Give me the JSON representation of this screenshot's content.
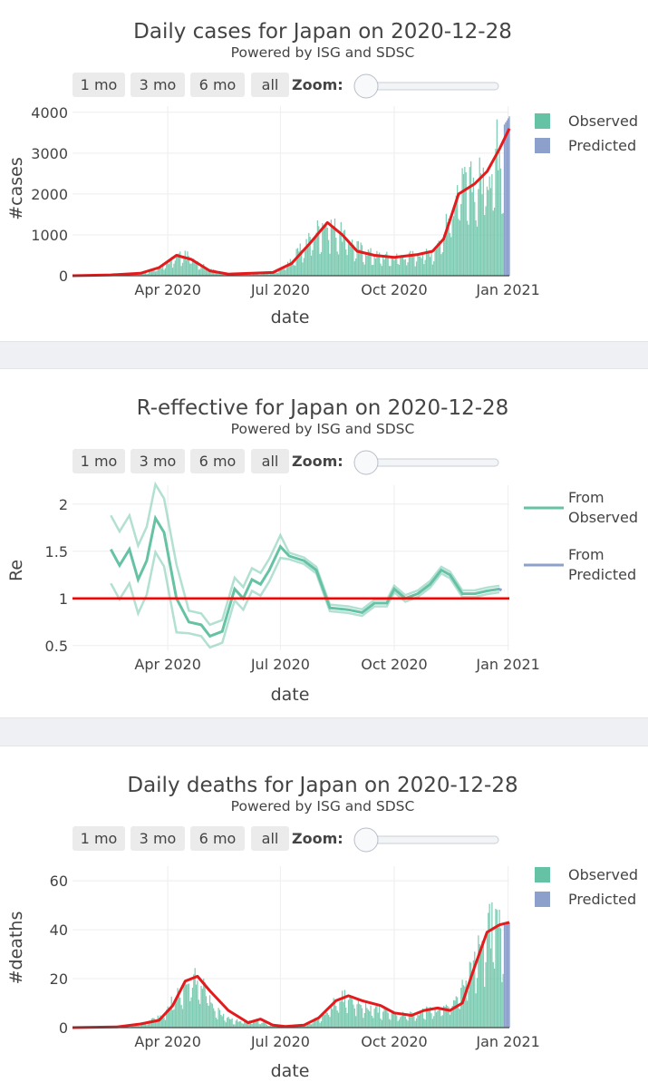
{
  "button_labels": [
    "1 mo",
    "3 mo",
    "6 mo",
    "all"
  ],
  "zoom_label": "Zoom:",
  "colors": {
    "observed": "#66c2a5",
    "predicted": "#8da0cb",
    "trend": "#e41a1c",
    "reference": "#ff0000"
  },
  "chart_data": [
    {
      "type": "bar",
      "title": "Daily cases for Japan on 2020-12-28",
      "subtitle": "Powered by ISG and SDSC",
      "xlabel": "date",
      "ylabel": "#cases",
      "x_ticks": [
        "Apr 2020",
        "Jul 2020",
        "Oct 2020",
        "Jan 2021"
      ],
      "x_range": [
        "2020-01-15",
        "2021-01-02"
      ],
      "y_ticks": [
        "0",
        "1000",
        "2000",
        "3000",
        "4000"
      ],
      "ylim": [
        0,
        4150
      ],
      "legend": [
        "Observed",
        "Predicted"
      ],
      "series": [
        {
          "name": "Observed",
          "kind": "bar",
          "knots": [
            [
              "2020-01-15",
              0
            ],
            [
              "2020-02-20",
              5
            ],
            [
              "2020-03-10",
              40
            ],
            [
              "2020-03-25",
              200
            ],
            [
              "2020-04-10",
              550
            ],
            [
              "2020-04-20",
              500
            ],
            [
              "2020-05-01",
              250
            ],
            [
              "2020-05-20",
              30
            ],
            [
              "2020-06-15",
              50
            ],
            [
              "2020-07-01",
              150
            ],
            [
              "2020-07-15",
              600
            ],
            [
              "2020-07-28",
              1100
            ],
            [
              "2020-08-05",
              1450
            ],
            [
              "2020-08-15",
              1250
            ],
            [
              "2020-08-30",
              800
            ],
            [
              "2020-09-15",
              550
            ],
            [
              "2020-10-01",
              500
            ],
            [
              "2020-10-15",
              550
            ],
            [
              "2020-11-01",
              650
            ],
            [
              "2020-11-10",
              1100
            ],
            [
              "2020-11-20",
              2200
            ],
            [
              "2020-12-01",
              2400
            ],
            [
              "2020-12-15",
              2700
            ],
            [
              "2020-12-24",
              3500
            ],
            [
              "2020-12-28",
              3650
            ]
          ]
        },
        {
          "name": "Predicted",
          "kind": "bar",
          "knots": [
            [
              "2020-12-29",
              3700
            ],
            [
              "2020-12-30",
              3750
            ],
            [
              "2020-12-31",
              3800
            ],
            [
              "2021-01-01",
              3850
            ],
            [
              "2021-01-02",
              3900
            ]
          ]
        },
        {
          "name": "Trend",
          "kind": "line",
          "knots": [
            [
              "2020-01-15",
              0
            ],
            [
              "2020-02-15",
              20
            ],
            [
              "2020-03-10",
              60
            ],
            [
              "2020-03-25",
              200
            ],
            [
              "2020-04-08",
              500
            ],
            [
              "2020-04-20",
              400
            ],
            [
              "2020-05-05",
              120
            ],
            [
              "2020-05-20",
              40
            ],
            [
              "2020-06-25",
              80
            ],
            [
              "2020-07-10",
              300
            ],
            [
              "2020-07-25",
              800
            ],
            [
              "2020-08-08",
              1300
            ],
            [
              "2020-08-20",
              1000
            ],
            [
              "2020-09-01",
              600
            ],
            [
              "2020-09-15",
              500
            ],
            [
              "2020-10-01",
              450
            ],
            [
              "2020-10-20",
              520
            ],
            [
              "2020-11-01",
              600
            ],
            [
              "2020-11-10",
              900
            ],
            [
              "2020-11-22",
              2000
            ],
            [
              "2020-12-05",
              2250
            ],
            [
              "2020-12-15",
              2550
            ],
            [
              "2020-12-25",
              3100
            ],
            [
              "2021-01-02",
              3600
            ]
          ]
        }
      ]
    },
    {
      "type": "line",
      "title": "R-effective for Japan on 2020-12-28",
      "subtitle": "Powered by ISG and SDSC",
      "xlabel": "date",
      "ylabel": "Re",
      "x_ticks": [
        "Apr 2020",
        "Jul 2020",
        "Oct 2020",
        "Jan 2021"
      ],
      "x_range": [
        "2020-01-15",
        "2021-01-02"
      ],
      "y_ticks": [
        "0.5",
        "1",
        "1.5",
        "2"
      ],
      "ylim": [
        0.45,
        2.2
      ],
      "reference_line": 1,
      "legend": [
        "From Observed",
        "From Predicted"
      ],
      "series": [
        {
          "name": "From Observed",
          "kind": "line",
          "points": [
            [
              "2020-02-15",
              1.52
            ],
            [
              "2020-02-22",
              1.35
            ],
            [
              "2020-03-01",
              1.52
            ],
            [
              "2020-03-08",
              1.2
            ],
            [
              "2020-03-15",
              1.4
            ],
            [
              "2020-03-22",
              1.85
            ],
            [
              "2020-03-29",
              1.7
            ],
            [
              "2020-04-08",
              1.0
            ],
            [
              "2020-04-18",
              0.75
            ],
            [
              "2020-04-28",
              0.72
            ],
            [
              "2020-05-05",
              0.6
            ],
            [
              "2020-05-15",
              0.65
            ],
            [
              "2020-05-25",
              1.1
            ],
            [
              "2020-06-01",
              1.0
            ],
            [
              "2020-06-08",
              1.2
            ],
            [
              "2020-06-15",
              1.15
            ],
            [
              "2020-06-22",
              1.3
            ],
            [
              "2020-07-01",
              1.55
            ],
            [
              "2020-07-08",
              1.45
            ],
            [
              "2020-07-20",
              1.4
            ],
            [
              "2020-07-30",
              1.3
            ],
            [
              "2020-08-10",
              0.9
            ],
            [
              "2020-08-25",
              0.88
            ],
            [
              "2020-09-05",
              0.85
            ],
            [
              "2020-09-15",
              0.95
            ],
            [
              "2020-09-25",
              0.95
            ],
            [
              "2020-10-01",
              1.1
            ],
            [
              "2020-10-10",
              1.0
            ],
            [
              "2020-10-20",
              1.05
            ],
            [
              "2020-10-30",
              1.15
            ],
            [
              "2020-11-08",
              1.3
            ],
            [
              "2020-11-15",
              1.25
            ],
            [
              "2020-11-25",
              1.05
            ],
            [
              "2020-12-05",
              1.05
            ],
            [
              "2020-12-15",
              1.08
            ],
            [
              "2020-12-25",
              1.1
            ]
          ]
        },
        {
          "name": "From Predicted",
          "kind": "line",
          "points": [
            [
              "2020-12-24",
              1.1
            ],
            [
              "2020-12-29",
              1.08
            ]
          ]
        }
      ]
    },
    {
      "type": "bar",
      "title": "Daily deaths for Japan on 2020-12-28",
      "subtitle": "Powered by ISG and SDSC",
      "xlabel": "date",
      "ylabel": "#deaths",
      "x_ticks": [
        "Apr 2020",
        "Jul 2020",
        "Oct 2020",
        "Jan 2021"
      ],
      "x_range": [
        "2020-01-15",
        "2021-01-02"
      ],
      "y_ticks": [
        "0",
        "20",
        "40",
        "60"
      ],
      "ylim": [
        0,
        66
      ],
      "legend": [
        "Observed",
        "Predicted"
      ],
      "series": [
        {
          "name": "Observed",
          "kind": "bar",
          "knots": [
            [
              "2020-01-15",
              0
            ],
            [
              "2020-02-25",
              0
            ],
            [
              "2020-03-15",
              2
            ],
            [
              "2020-03-28",
              6
            ],
            [
              "2020-04-08",
              15
            ],
            [
              "2020-04-20",
              22
            ],
            [
              "2020-05-01",
              18
            ],
            [
              "2020-05-10",
              8
            ],
            [
              "2020-05-25",
              3
            ],
            [
              "2020-06-10",
              3
            ],
            [
              "2020-06-25",
              1
            ],
            [
              "2020-07-10",
              0
            ],
            [
              "2020-07-25",
              2
            ],
            [
              "2020-08-05",
              6
            ],
            [
              "2020-08-15",
              12
            ],
            [
              "2020-08-25",
              14
            ],
            [
              "2020-09-05",
              10
            ],
            [
              "2020-09-20",
              8
            ],
            [
              "2020-10-01",
              6
            ],
            [
              "2020-10-15",
              6
            ],
            [
              "2020-11-01",
              8
            ],
            [
              "2020-11-10",
              8
            ],
            [
              "2020-11-20",
              12
            ],
            [
              "2020-12-01",
              25
            ],
            [
              "2020-12-10",
              40
            ],
            [
              "2020-12-20",
              45
            ],
            [
              "2020-12-28",
              42
            ]
          ]
        },
        {
          "name": "Predicted",
          "kind": "bar",
          "knots": [
            [
              "2020-12-29",
              42
            ],
            [
              "2020-12-30",
              42
            ],
            [
              "2020-12-31",
              43
            ],
            [
              "2021-01-01",
              43
            ],
            [
              "2021-01-02",
              43
            ]
          ]
        },
        {
          "name": "Trend",
          "kind": "line",
          "knots": [
            [
              "2020-01-15",
              0
            ],
            [
              "2020-02-20",
              0.3
            ],
            [
              "2020-03-10",
              1.5
            ],
            [
              "2020-03-25",
              3
            ],
            [
              "2020-04-05",
              9
            ],
            [
              "2020-04-15",
              19
            ],
            [
              "2020-04-25",
              21
            ],
            [
              "2020-05-05",
              15
            ],
            [
              "2020-05-20",
              7
            ],
            [
              "2020-06-05",
              2
            ],
            [
              "2020-06-15",
              3.5
            ],
            [
              "2020-06-25",
              1
            ],
            [
              "2020-07-05",
              0.5
            ],
            [
              "2020-07-20",
              1
            ],
            [
              "2020-08-01",
              4
            ],
            [
              "2020-08-15",
              11
            ],
            [
              "2020-08-25",
              13
            ],
            [
              "2020-09-05",
              11
            ],
            [
              "2020-09-20",
              9
            ],
            [
              "2020-10-01",
              6
            ],
            [
              "2020-10-15",
              5
            ],
            [
              "2020-10-25",
              7
            ],
            [
              "2020-11-05",
              8
            ],
            [
              "2020-11-15",
              7
            ],
            [
              "2020-11-25",
              10
            ],
            [
              "2020-12-05",
              25
            ],
            [
              "2020-12-15",
              39
            ],
            [
              "2020-12-25",
              42
            ],
            [
              "2021-01-02",
              43
            ]
          ]
        }
      ]
    }
  ]
}
